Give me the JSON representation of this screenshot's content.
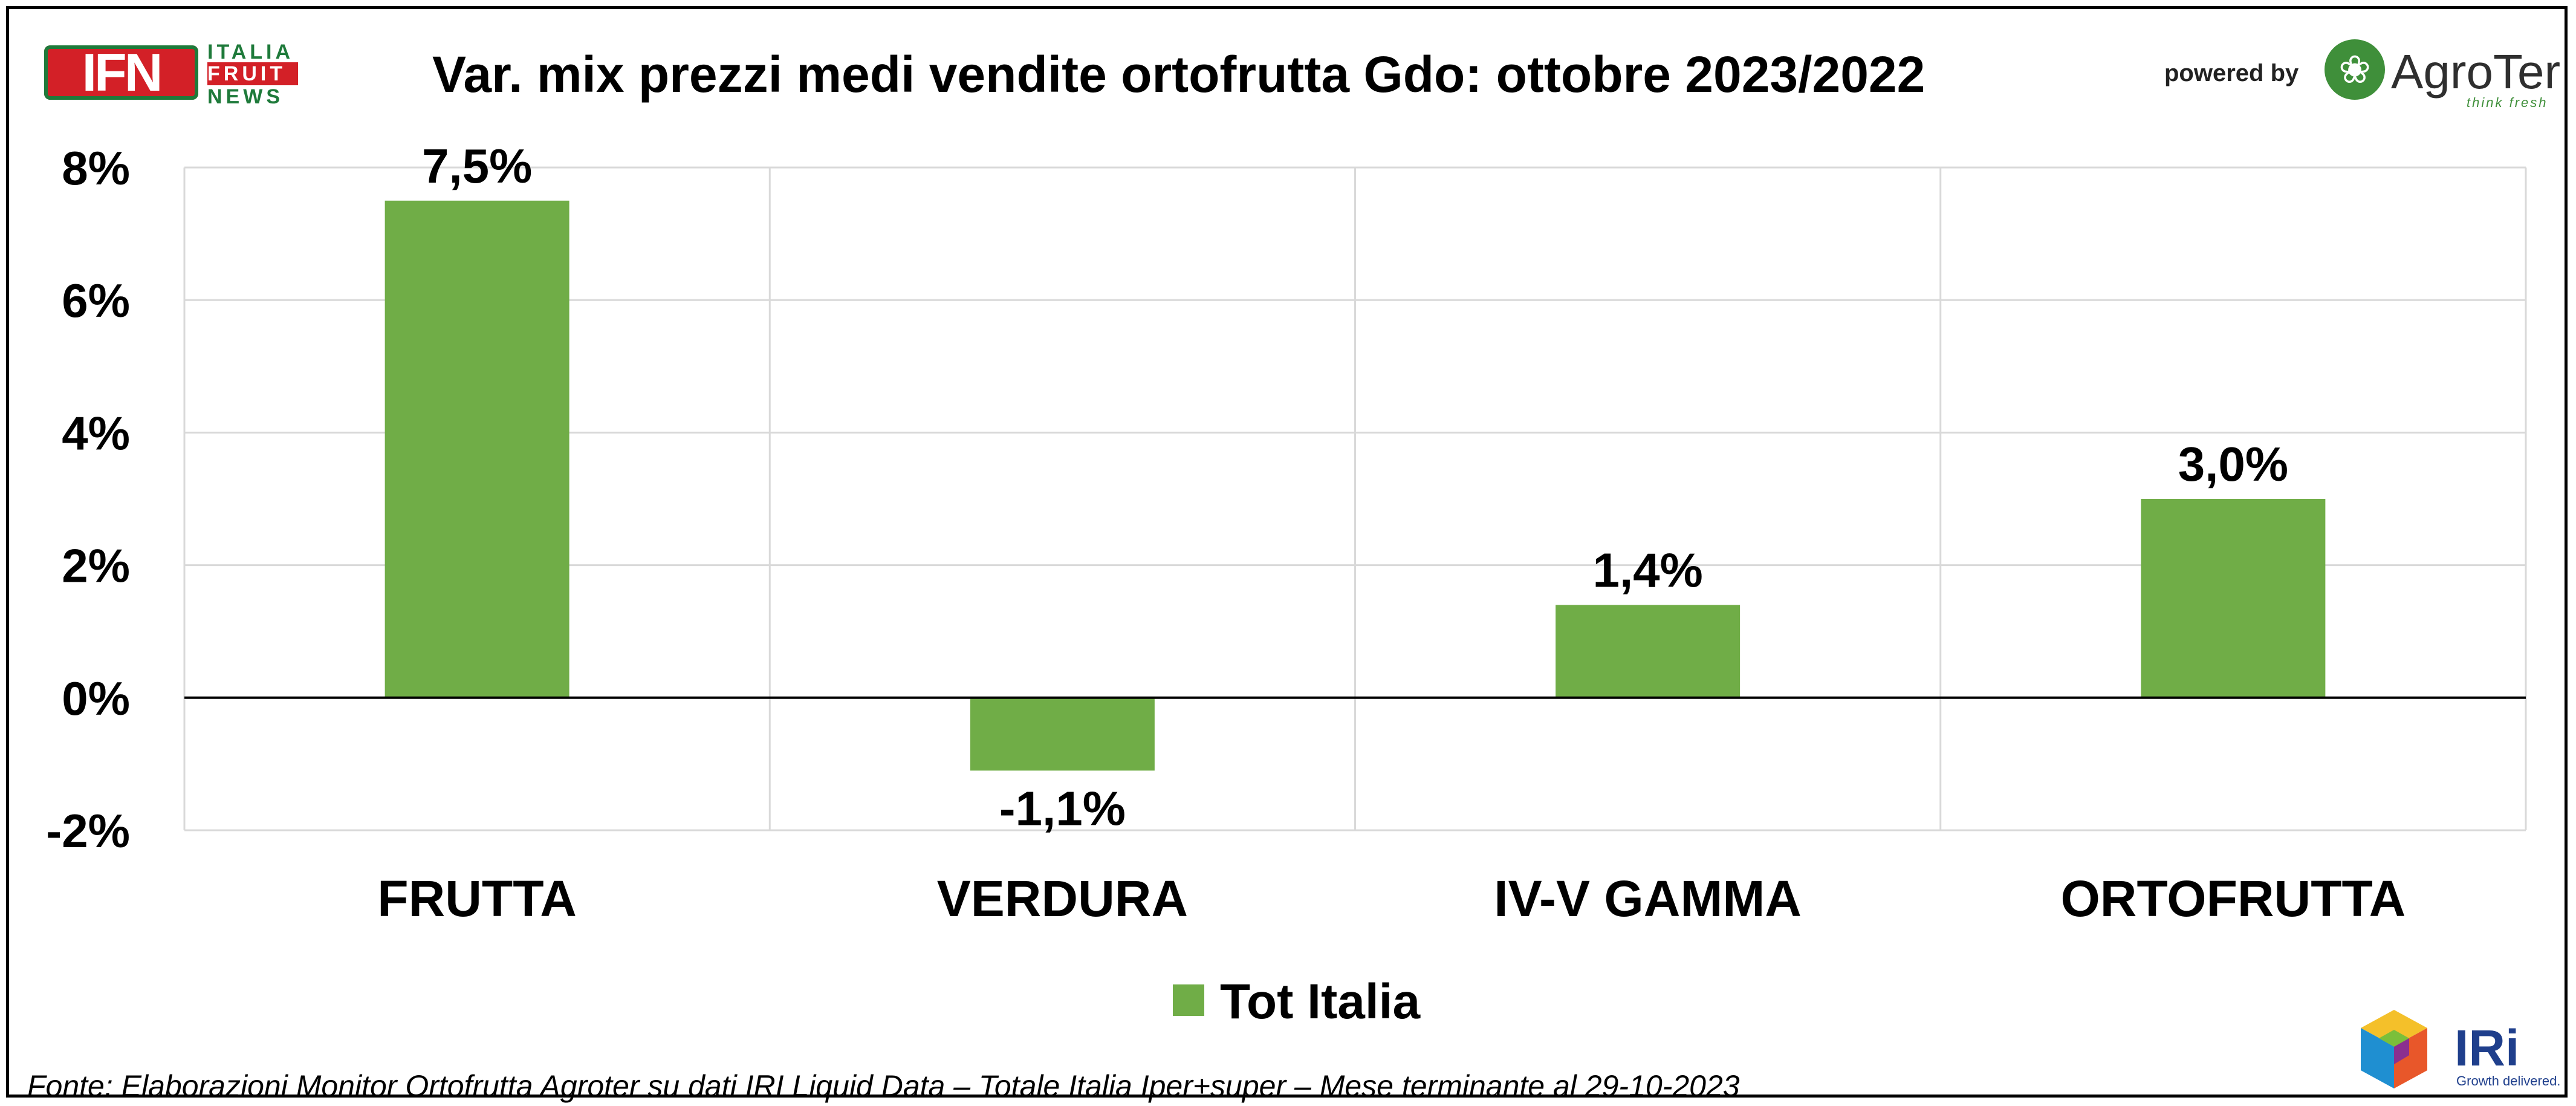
{
  "header": {
    "title": "Var. mix prezzi medi vendite ortofrutta Gdo: ottobre 2023/2022",
    "ifn_logo_text": "IFN",
    "ifn_side_lines": [
      "ITALIA",
      "FRUIT",
      "NEWS"
    ],
    "powered_by": "powered by",
    "agroter_name": "AgroTer",
    "agroter_tagline": "think fresh"
  },
  "footer": {
    "source": "Fonte: Elaborazioni Monitor Ortofrutta Agroter su dati IRI Liquid Data – Totale Italia Iper+super – Mese terminante al 29-10-2023",
    "iri_name": "IRi",
    "iri_tagline": "Growth delivered."
  },
  "colors": {
    "bar": "#70ad47",
    "grid": "#d9d9d9",
    "zero_line": "#000000",
    "ifn_red": "#d32027",
    "ifn_green": "#1e7a3a",
    "agroter_green": "#3f8f3a",
    "iri_blue": "#1f3f8c"
  },
  "chart_data": {
    "type": "bar",
    "title": "Var. mix prezzi medi vendite ortofrutta Gdo: ottobre 2023/2022",
    "categories": [
      "FRUTTA",
      "VERDURA",
      "IV-V GAMMA",
      "ORTOFRUTTA"
    ],
    "series": [
      {
        "name": "Tot Italia",
        "values": [
          7.5,
          -1.1,
          1.4,
          3.0
        ],
        "labels": [
          "7,5%",
          "-1,1%",
          "1,4%",
          "3,0%"
        ]
      }
    ],
    "ylim": [
      -2,
      8
    ],
    "yticks": [
      -2,
      0,
      2,
      4,
      6,
      8
    ],
    "ytick_labels": [
      "-2%",
      "0%",
      "2%",
      "4%",
      "6%",
      "8%"
    ],
    "grid": true,
    "legend_position": "bottom"
  }
}
